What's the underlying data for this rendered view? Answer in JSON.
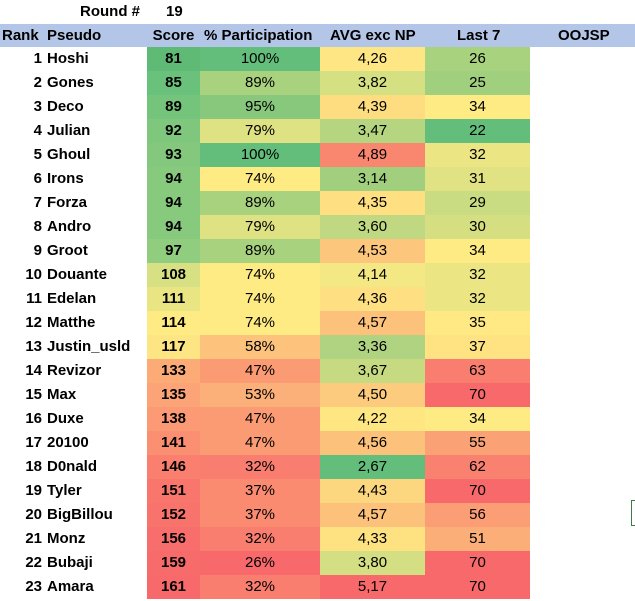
{
  "round": {
    "label": "Round #",
    "value": "19"
  },
  "headers": {
    "rank": "Rank",
    "pseudo": "Pseudo",
    "score": "Score",
    "participation": "% Participation",
    "avg": "AVG exc NP",
    "last7": "Last 7",
    "oojsp": "OOJSP"
  },
  "rows": [
    {
      "rank": "1",
      "pseudo": "Hoshi",
      "score": "81",
      "participation": "100%",
      "avg": "4,26",
      "last7": "26",
      "score_color": "#5fba75",
      "part_color": "#63be7b",
      "avg_color": "#fde683",
      "last_color": "#a9d27f"
    },
    {
      "rank": "2",
      "pseudo": "Gones",
      "score": "85",
      "participation": "89%",
      "avg": "3,82",
      "last7": "25",
      "score_color": "#6ac17b",
      "part_color": "#a9d27f",
      "avg_color": "#d5e082",
      "last_color": "#a0cf7e"
    },
    {
      "rank": "3",
      "pseudo": "Deco",
      "score": "89",
      "participation": "95%",
      "avg": "4,39",
      "last7": "34",
      "score_color": "#74c47c",
      "part_color": "#87c87d",
      "avg_color": "#fedd81",
      "last_color": "#ffeb84"
    },
    {
      "rank": "4",
      "pseudo": "Julian",
      "score": "92",
      "participation": "79%",
      "avg": "3,47",
      "last7": "22",
      "score_color": "#7fc77d",
      "part_color": "#dfe283",
      "avg_color": "#b5d580",
      "last_color": "#63be7b"
    },
    {
      "rank": "5",
      "pseudo": "Ghoul",
      "score": "93",
      "participation": "100%",
      "avg": "4,89",
      "last7": "32",
      "score_color": "#83c87d",
      "part_color": "#63be7b",
      "avg_color": "#f98770",
      "last_color": "#ebe583"
    },
    {
      "rank": "6",
      "pseudo": "Irons",
      "score": "94",
      "participation": "74%",
      "avg": "3,14",
      "last7": "31",
      "score_color": "#87ca7e",
      "part_color": "#feeb84",
      "avg_color": "#a1cf7e",
      "last_color": "#e0e283"
    },
    {
      "rank": "7",
      "pseudo": "Forza",
      "score": "94",
      "participation": "89%",
      "avg": "4,35",
      "last7": "29",
      "score_color": "#87ca7e",
      "part_color": "#a9d27f",
      "avg_color": "#fee082",
      "last_color": "#c9dc81"
    },
    {
      "rank": "8",
      "pseudo": "Andro",
      "score": "94",
      "participation": "79%",
      "avg": "3,60",
      "last7": "30",
      "score_color": "#87ca7e",
      "part_color": "#dfe283",
      "avg_color": "#c0d881",
      "last_color": "#d5df82"
    },
    {
      "rank": "9",
      "pseudo": "Groot",
      "score": "97",
      "participation": "89%",
      "avg": "4,53",
      "last7": "34",
      "score_color": "#91cd7e",
      "part_color": "#a9d27f",
      "avg_color": "#fcc67c",
      "last_color": "#ffeb84"
    },
    {
      "rank": "10",
      "pseudo": "Douante",
      "score": "108",
      "participation": "74%",
      "avg": "4,14",
      "last7": "32",
      "score_color": "#d7e082",
      "part_color": "#feeb84",
      "avg_color": "#f4e884",
      "last_color": "#ebe583"
    },
    {
      "rank": "11",
      "pseudo": "Edelan",
      "score": "111",
      "participation": "74%",
      "avg": "4,36",
      "last7": "32",
      "score_color": "#e9e583",
      "part_color": "#feeb84",
      "avg_color": "#fee082",
      "last_color": "#ebe583"
    },
    {
      "rank": "12",
      "pseudo": "Matthe",
      "score": "114",
      "participation": "74%",
      "avg": "4,57",
      "last7": "35",
      "score_color": "#feeb84",
      "part_color": "#feeb84",
      "avg_color": "#fcc17b",
      "last_color": "#ffe984"
    },
    {
      "rank": "13",
      "pseudo": "Justin_usld",
      "score": "117",
      "participation": "58%",
      "avg": "3,36",
      "last7": "37",
      "score_color": "#fee583",
      "part_color": "#fdc27c",
      "avg_color": "#afd380",
      "last_color": "#ffe383"
    },
    {
      "rank": "14",
      "pseudo": "Revizor",
      "score": "133",
      "participation": "47%",
      "avg": "3,67",
      "last7": "63",
      "score_color": "#fcab77",
      "part_color": "#fb9b74",
      "avg_color": "#c6da81",
      "last_color": "#f97e6f"
    },
    {
      "rank": "15",
      "pseudo": "Max",
      "score": "135",
      "participation": "53%",
      "avg": "4,50",
      "last7": "70",
      "score_color": "#fca377",
      "part_color": "#fcb079",
      "avg_color": "#fdcb7d",
      "last_color": "#f8696b"
    },
    {
      "rank": "16",
      "pseudo": "Duxe",
      "score": "138",
      "participation": "47%",
      "avg": "4,22",
      "last7": "34",
      "score_color": "#fb9a74",
      "part_color": "#fb9b74",
      "avg_color": "#fee783",
      "last_color": "#ffeb84"
    },
    {
      "rank": "17",
      "pseudo": "20100",
      "score": "141",
      "participation": "47%",
      "avg": "4,56",
      "last7": "55",
      "score_color": "#fa8f72",
      "part_color": "#fb9b74",
      "avg_color": "#fcc27b",
      "last_color": "#fba176"
    },
    {
      "rank": "18",
      "pseudo": "D0nald",
      "score": "146",
      "participation": "32%",
      "avg": "2,67",
      "last7": "62",
      "score_color": "#fa7f6f",
      "part_color": "#f97e6f",
      "avg_color": "#63be7b",
      "last_color": "#f9816f"
    },
    {
      "rank": "19",
      "pseudo": "Tyler",
      "score": "151",
      "participation": "37%",
      "avg": "4,43",
      "last7": "70",
      "score_color": "#f9766d",
      "part_color": "#fa8b71",
      "avg_color": "#fdd780",
      "last_color": "#f8696b"
    },
    {
      "rank": "20",
      "pseudo": "BigBillou",
      "score": "152",
      "participation": "37%",
      "avg": "4,57",
      "last7": "56",
      "score_color": "#f9736d",
      "part_color": "#fa8b71",
      "avg_color": "#fcc17b",
      "last_color": "#fb9e75"
    },
    {
      "rank": "21",
      "pseudo": "Monz",
      "score": "156",
      "participation": "32%",
      "avg": "4,33",
      "last7": "51",
      "score_color": "#f86e6c",
      "part_color": "#f97e6f",
      "avg_color": "#fee282",
      "last_color": "#fcae78"
    },
    {
      "rank": "22",
      "pseudo": "Bubaji",
      "score": "159",
      "participation": "26%",
      "avg": "3,80",
      "last7": "70",
      "score_color": "#f86b6b",
      "part_color": "#f8696b",
      "avg_color": "#d3df82",
      "last_color": "#f8696b"
    },
    {
      "rank": "23",
      "pseudo": "Amara",
      "score": "161",
      "participation": "32%",
      "avg": "5,17",
      "last7": "70",
      "score_color": "#f8696b",
      "part_color": "#f97e6f",
      "avg_color": "#f8696b",
      "last_color": "#f8696b"
    }
  ]
}
